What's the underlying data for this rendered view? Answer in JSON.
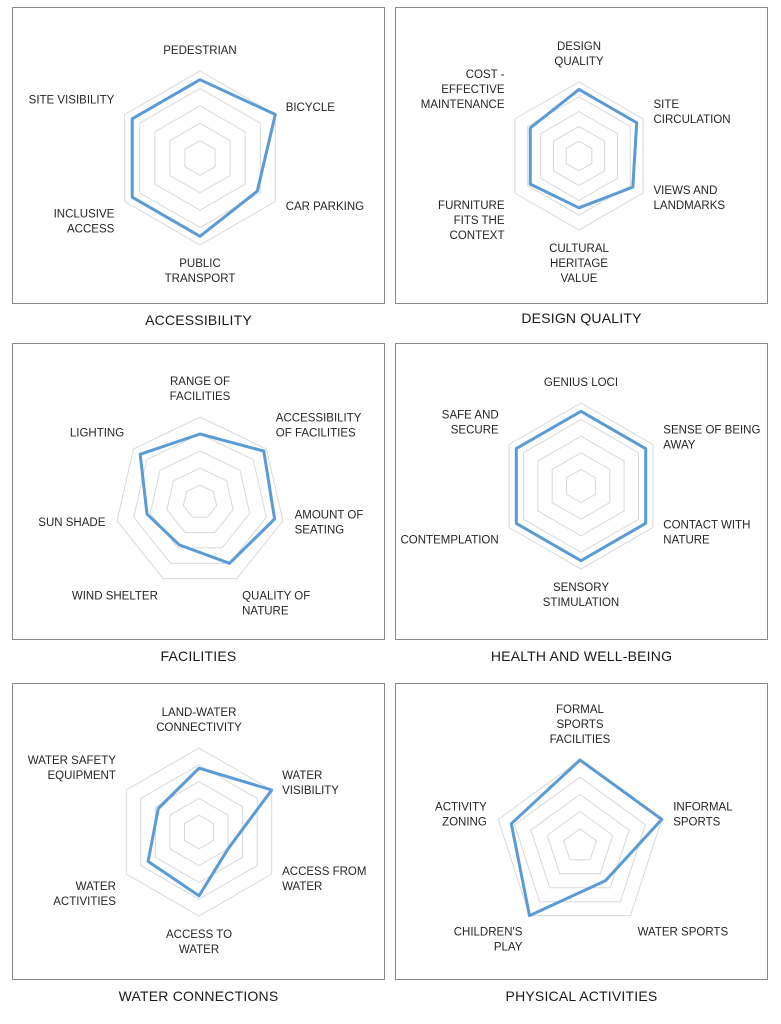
{
  "chart_data": [
    {
      "type": "radar",
      "title": "ACCESSIBILITY",
      "rlim": [
        0,
        5
      ],
      "categories": [
        [
          "PEDESTRIAN"
        ],
        [
          "BICYCLE"
        ],
        [
          "CAR PARKING"
        ],
        [
          "PUBLIC",
          "TRANSPORT"
        ],
        [
          "INCLUSIVE",
          "ACCESS"
        ],
        [
          "SITE VISIBILITY"
        ]
      ],
      "values": [
        4.5,
        5,
        3.8,
        4.5,
        4.5,
        4.5
      ],
      "grid": true,
      "series_color": "#5b9bd5"
    },
    {
      "type": "radar",
      "title": "DESIGN QUALITY",
      "rlim": [
        0,
        5
      ],
      "categories": [
        [
          "DESIGN",
          "QUALITY"
        ],
        [
          "SITE",
          "CIRCULATION"
        ],
        [
          "VIEWS AND",
          "LANDMARKS"
        ],
        [
          "CULTURAL",
          "HERITAGE",
          "VALUE"
        ],
        [
          "FURNITURE",
          "FITS THE",
          "CONTEXT"
        ],
        [
          "COST -",
          "EFFECTIVE",
          "MAINTENANCE"
        ]
      ],
      "values": [
        4.5,
        4.5,
        4.2,
        3.5,
        3.8,
        3.8
      ],
      "grid": true,
      "series_color": "#5b9bd5"
    },
    {
      "type": "radar",
      "title": "FACILITIES",
      "rlim": [
        0,
        5
      ],
      "categories": [
        [
          "RANGE OF",
          "FACILITIES"
        ],
        [
          "ACCESSIBILITY",
          "OF FACILITIES"
        ],
        [
          "AMOUNT OF",
          "SEATING"
        ],
        [
          "QUALITY OF",
          "NATURE"
        ],
        [
          "WIND SHELTER"
        ],
        [
          "SUN SHADE"
        ],
        [
          "LIGHTING"
        ]
      ],
      "values": [
        4,
        4.8,
        4.5,
        4,
        2.8,
        3.2,
        4.5
      ],
      "grid": true,
      "series_color": "#5b9bd5"
    },
    {
      "type": "radar",
      "title": "HEALTH AND WELL-BEING",
      "rlim": [
        0,
        5
      ],
      "categories": [
        [
          "GENIUS LOCI"
        ],
        [
          "SENSE OF BEING",
          "AWAY"
        ],
        [
          "CONTACT WITH",
          "NATURE"
        ],
        [
          "SENSORY",
          "STIMULATION"
        ],
        [
          "CONTEMPLATION"
        ],
        [
          "SAFE AND",
          "SECURE"
        ]
      ],
      "values": [
        4.5,
        4.5,
        4.5,
        4.5,
        4.5,
        4.5
      ],
      "grid": true,
      "series_color": "#5b9bd5"
    },
    {
      "type": "radar",
      "title": "WATER CONNECTIONS",
      "rlim": [
        0,
        5
      ],
      "categories": [
        [
          "LAND-WATER",
          "CONNECTIVITY"
        ],
        [
          "WATER",
          "VISIBILITY"
        ],
        [
          "ACCESS FROM",
          "WATER"
        ],
        [
          "ACCESS TO",
          "WATER"
        ],
        [
          "WATER",
          "ACTIVITIES"
        ],
        [
          "WATER SAFETY",
          "EQUIPMENT"
        ]
      ],
      "values": [
        3.8,
        5,
        2,
        3.8,
        3.5,
        2.8
      ],
      "grid": true,
      "series_color": "#5b9bd5"
    },
    {
      "type": "radar",
      "title": "PHYSICAL ACTIVITIES",
      "rlim": [
        0,
        5
      ],
      "categories": [
        [
          "FORMAL",
          "SPORTS",
          "FACILITIES"
        ],
        [
          "INFORMAL",
          "SPORTS"
        ],
        [
          "WATER SPORTS"
        ],
        [
          "CHILDREN'S",
          "PLAY"
        ],
        [
          "ACTIVITY",
          "ZONING"
        ]
      ],
      "values": [
        5,
        5,
        2.5,
        5,
        4.2
      ],
      "grid": true,
      "series_color": "#5b9bd5"
    }
  ]
}
